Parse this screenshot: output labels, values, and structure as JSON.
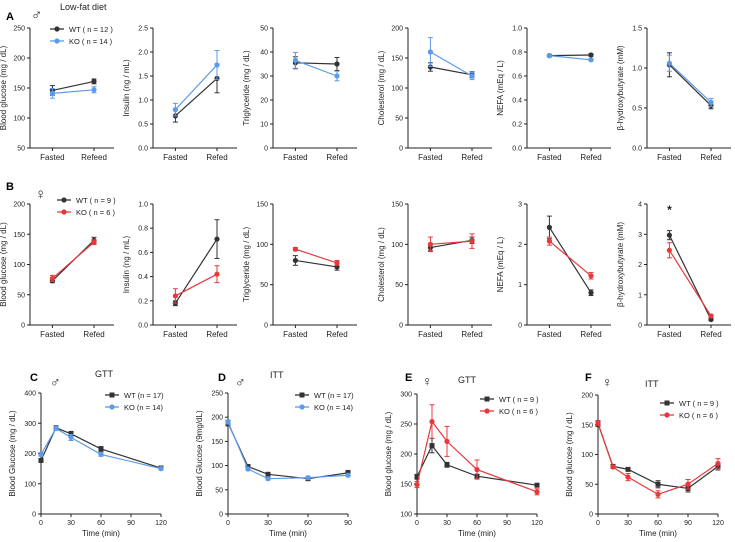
{
  "figure": {
    "panel_labels": [
      "A",
      "B",
      "C",
      "D",
      "E",
      "F"
    ],
    "diet_label": "Low-fat diet",
    "male_symbol": "♂",
    "female_symbol": "♀",
    "significance_marker": "*"
  },
  "colors": {
    "WT": "#333333",
    "KO_male": "#5b9bea",
    "KO_female": "#e8383d"
  },
  "chart_data": [
    {
      "type": "line",
      "panel": "A",
      "sex": "male",
      "ylabel": "Blood glucose (mg / dL)",
      "categories": [
        "Fasted",
        "Refeed"
      ],
      "ylim": [
        50,
        250
      ],
      "yticks": [
        50,
        100,
        150,
        200,
        250
      ],
      "legend": [
        "WT ( n = 12 )",
        "KO ( n = 14 )"
      ],
      "series": [
        {
          "name": "WT",
          "values": [
            146,
            161
          ],
          "error": [
            8,
            4
          ]
        },
        {
          "name": "KO",
          "values": [
            141,
            147
          ],
          "error": [
            8,
            5
          ]
        }
      ]
    },
    {
      "type": "line",
      "panel": "A",
      "sex": "male",
      "ylabel": "Insulin (ng / mL)",
      "categories": [
        "Fasted",
        "Refed"
      ],
      "ylim": [
        0,
        2.5
      ],
      "yticks": [
        "0.0",
        "0.5",
        "1.0",
        "1.5",
        "2.0",
        "2.5"
      ],
      "series": [
        {
          "name": "WT",
          "values": [
            0.67,
            1.45
          ],
          "error": [
            0.13,
            0.3
          ]
        },
        {
          "name": "KO",
          "values": [
            0.8,
            1.73
          ],
          "error": [
            0.13,
            0.3
          ]
        }
      ]
    },
    {
      "type": "line",
      "panel": "A",
      "sex": "male",
      "ylabel": "Triglyceride (mg / dL)",
      "categories": [
        "Fasted",
        "Refed"
      ],
      "ylim": [
        0,
        50
      ],
      "yticks": [
        0,
        10,
        20,
        30,
        40,
        50
      ],
      "series": [
        {
          "name": "WT",
          "values": [
            35.5,
            35
          ],
          "error": [
            2.5,
            2.7
          ]
        },
        {
          "name": "KO",
          "values": [
            36.5,
            30
          ],
          "error": [
            3.3,
            2
          ]
        }
      ]
    },
    {
      "type": "line",
      "panel": "A",
      "sex": "male",
      "ylabel": "Cholesterol (mg / dL)",
      "categories": [
        "Fasted",
        "Refed"
      ],
      "ylim": [
        0,
        200
      ],
      "yticks": [
        0,
        50,
        100,
        150,
        200
      ],
      "series": [
        {
          "name": "WT",
          "values": [
            135,
            122
          ],
          "error": [
            7,
            5
          ]
        },
        {
          "name": "KO",
          "values": [
            160,
            120
          ],
          "error": [
            24,
            6
          ]
        }
      ]
    },
    {
      "type": "line",
      "panel": "A",
      "sex": "male",
      "ylabel": "NEFA (mEq / L)",
      "categories": [
        "Fasted",
        "Refed"
      ],
      "ylim": [
        0,
        1.0
      ],
      "yticks": [
        "0.0",
        "0.2",
        "0.4",
        "0.6",
        "0.8",
        "1.0"
      ],
      "series": [
        {
          "name": "WT",
          "values": [
            0.77,
            0.775
          ],
          "error": [
            0.01,
            0.01
          ]
        },
        {
          "name": "KO",
          "values": [
            0.77,
            0.735
          ],
          "error": [
            0.01,
            0.01
          ]
        }
      ]
    },
    {
      "type": "line",
      "panel": "A",
      "sex": "male",
      "ylabel": "β-hydroxybutyrate (mM)",
      "categories": [
        "Fasted",
        "Refed"
      ],
      "ylim": [
        0,
        1.5
      ],
      "yticks": [
        "0.0",
        "0.5",
        "1.0",
        "1.5"
      ],
      "series": [
        {
          "name": "WT",
          "values": [
            1.04,
            0.53
          ],
          "error": [
            0.15,
            0.04
          ]
        },
        {
          "name": "KO",
          "values": [
            1.06,
            0.57
          ],
          "error": [
            0.1,
            0.05
          ]
        }
      ]
    },
    {
      "type": "line",
      "panel": "B",
      "sex": "female",
      "ylabel": "Blood glucose (mg / dL)",
      "categories": [
        "Fasted",
        "Refed"
      ],
      "ylim": [
        0,
        200
      ],
      "yticks": [
        0,
        50,
        100,
        150,
        200
      ],
      "legend": [
        "WT ( n = 9 )",
        "KO ( n = 6 )"
      ],
      "series": [
        {
          "name": "WT",
          "values": [
            73,
            140
          ],
          "error": [
            3,
            5
          ]
        },
        {
          "name": "KO",
          "values": [
            77,
            137
          ],
          "error": [
            5,
            4
          ]
        }
      ]
    },
    {
      "type": "line",
      "panel": "B",
      "sex": "female",
      "ylabel": "Insulin (ng / mL)",
      "categories": [
        "Fasted",
        "Refed"
      ],
      "ylim": [
        0,
        1.0
      ],
      "yticks": [
        "0.0",
        "0.2",
        "0.4",
        "0.6",
        "0.8",
        "1.0"
      ],
      "series": [
        {
          "name": "WT",
          "values": [
            0.18,
            0.71
          ],
          "error": [
            0.02,
            0.16
          ]
        },
        {
          "name": "KO",
          "values": [
            0.24,
            0.42
          ],
          "error": [
            0.06,
            0.07
          ]
        }
      ]
    },
    {
      "type": "line",
      "panel": "B",
      "sex": "female",
      "ylabel": "Triglyceride (mg / dL)",
      "categories": [
        "Fasted",
        "Refed"
      ],
      "ylim": [
        0,
        150
      ],
      "yticks": [
        0,
        50,
        100,
        150
      ],
      "series": [
        {
          "name": "WT",
          "values": [
            80,
            72
          ],
          "error": [
            6,
            4
          ]
        },
        {
          "name": "KO",
          "values": [
            94,
            77
          ],
          "error": [
            2,
            3
          ]
        }
      ]
    },
    {
      "type": "line",
      "panel": "B",
      "sex": "female",
      "ylabel": "Cholesterol (mg / dL)",
      "categories": [
        "Fasted",
        "Refed"
      ],
      "ylim": [
        0,
        150
      ],
      "yticks": [
        0,
        50,
        100,
        150
      ],
      "series": [
        {
          "name": "WT",
          "values": [
            96,
            105
          ],
          "error": [
            4,
            4
          ]
        },
        {
          "name": "KO",
          "values": [
            100,
            104
          ],
          "error": [
            9,
            9
          ]
        }
      ]
    },
    {
      "type": "line",
      "panel": "B",
      "sex": "female",
      "ylabel": "NEFA (mEq / L)",
      "categories": [
        "Fasted",
        "Refed"
      ],
      "ylim": [
        0,
        3
      ],
      "yticks": [
        0,
        1,
        2,
        3
      ],
      "series": [
        {
          "name": "WT",
          "values": [
            2.42,
            0.8
          ],
          "error": [
            0.28,
            0.07
          ]
        },
        {
          "name": "KO",
          "values": [
            2.08,
            1.22
          ],
          "error": [
            0.1,
            0.08
          ]
        }
      ]
    },
    {
      "type": "line",
      "panel": "B",
      "sex": "female",
      "ylabel": "β-hydroxybutyrate (mM)",
      "categories": [
        "Fasted",
        "Refed"
      ],
      "ylim": [
        0,
        4
      ],
      "yticks": [
        0,
        1,
        2,
        3,
        4
      ],
      "annotation": {
        "text": "*",
        "category": "Fasted"
      },
      "series": [
        {
          "name": "WT",
          "values": [
            2.97,
            0.18
          ],
          "error": [
            0.15,
            0.03
          ]
        },
        {
          "name": "KO",
          "values": [
            2.47,
            0.3
          ],
          "error": [
            0.25,
            0.05
          ]
        }
      ]
    },
    {
      "type": "line",
      "panel": "C",
      "sex": "male",
      "title": "GTT",
      "xlabel": "Time (min)",
      "ylabel": "Blood Glucose (mg / dL)",
      "xlim": [
        0,
        120
      ],
      "xticks": [
        0,
        30,
        60,
        90,
        120
      ],
      "ylim": [
        0,
        400
      ],
      "yticks": [
        0,
        100,
        200,
        300,
        400
      ],
      "legend": [
        "WT (n = 17)",
        "KO (n = 14)"
      ],
      "x": [
        0,
        15,
        30,
        60,
        120
      ],
      "series": [
        {
          "name": "WT",
          "values": [
            177,
            285,
            265,
            215,
            152
          ],
          "error": [
            5,
            5,
            8,
            8,
            4
          ]
        },
        {
          "name": "KO",
          "values": [
            197,
            283,
            253,
            197,
            150
          ],
          "error": [
            6,
            6,
            10,
            6,
            4
          ]
        }
      ]
    },
    {
      "type": "line",
      "panel": "D",
      "sex": "male",
      "title": "ITT",
      "xlabel": "Time (min)",
      "ylabel": "Blood Glucose (9mg/dL)",
      "xlim": [
        0,
        90
      ],
      "xticks": [
        0,
        30,
        60,
        90
      ],
      "ylim": [
        0,
        250
      ],
      "yticks": [
        0,
        50,
        100,
        150,
        200,
        250
      ],
      "legend": [
        "WT (n = 17)",
        "KO (n = 14)"
      ],
      "x": [
        0,
        15,
        30,
        60,
        90
      ],
      "series": [
        {
          "name": "WT",
          "values": [
            188,
            98,
            82,
            73,
            85
          ],
          "error": [
            6,
            4,
            3,
            3,
            5
          ]
        },
        {
          "name": "KO",
          "values": [
            190,
            93,
            73,
            75,
            80
          ],
          "error": [
            4,
            3,
            3,
            3,
            3
          ]
        }
      ]
    },
    {
      "type": "line",
      "panel": "E",
      "sex": "female",
      "title": "GTT",
      "xlabel": "Time (min)",
      "ylabel": "Blood glucose (mg / dL)",
      "xlim": [
        0,
        120
      ],
      "xticks": [
        0,
        30,
        60,
        90,
        120
      ],
      "ylim": [
        100,
        300
      ],
      "yticks": [
        100,
        150,
        200,
        250,
        300
      ],
      "legend": [
        "WT ( n = 9 )",
        "KO ( n = 6 )"
      ],
      "x": [
        0,
        15,
        30,
        60,
        120
      ],
      "series": [
        {
          "name": "WT",
          "values": [
            162,
            214,
            182,
            163,
            148
          ],
          "error": [
            4,
            12,
            4,
            3,
            2
          ]
        },
        {
          "name": "KO",
          "values": [
            149,
            254,
            221,
            174,
            137
          ],
          "error": [
            5,
            28,
            25,
            16,
            5
          ]
        }
      ]
    },
    {
      "type": "line",
      "panel": "F",
      "sex": "female",
      "title": "ITT",
      "xlabel": "Time (min)",
      "ylabel": "Blood glucose (mg / dL)",
      "xlim": [
        0,
        120
      ],
      "xticks": [
        0,
        30,
        60,
        90,
        120
      ],
      "ylim": [
        0,
        200
      ],
      "yticks": [
        0,
        50,
        100,
        150,
        200
      ],
      "legend": [
        "WT ( n = 9 )",
        "KO ( n = 6 )"
      ],
      "x": [
        0,
        15,
        30,
        60,
        90,
        120
      ],
      "series": [
        {
          "name": "WT",
          "values": [
            152,
            80,
            75,
            50,
            43,
            80
          ],
          "error": [
            5,
            2,
            2,
            6,
            6,
            6
          ]
        },
        {
          "name": "KO",
          "values": [
            153,
            79,
            62,
            33,
            50,
            85
          ],
          "error": [
            4,
            2,
            6,
            6,
            8,
            8
          ]
        }
      ]
    }
  ]
}
